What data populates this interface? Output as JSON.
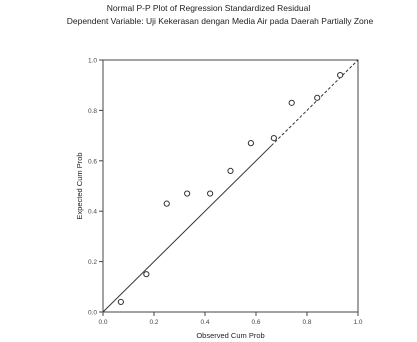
{
  "title": "Normal P-P Plot of Regression Standardized Residual",
  "subtitle": "Dependent Variable: Uji Kekerasan dengan Media Air pada Daerah Partially Zone",
  "chart_data": {
    "type": "scatter",
    "title": "Normal P-P Plot of Regression Standardized Residual",
    "subtitle": "Dependent Variable: Uji Kekerasan dengan Media Air pada Daerah Partially Zone",
    "xlabel": "Observed Cum Prob",
    "ylabel": "Expected Cum Prob",
    "xlim": [
      0,
      1
    ],
    "ylim": [
      0,
      1
    ],
    "xticks": [
      "0.0",
      "0.2",
      "0.4",
      "0.6",
      "0.8",
      "1.0"
    ],
    "yticks": [
      "0.0",
      "0.2",
      "0.4",
      "0.6",
      "0.8",
      "1.0"
    ],
    "reference_line": "diagonal",
    "grid": false,
    "points": [
      {
        "x": 0.07,
        "y": 0.04
      },
      {
        "x": 0.17,
        "y": 0.15
      },
      {
        "x": 0.25,
        "y": 0.43
      },
      {
        "x": 0.33,
        "y": 0.47
      },
      {
        "x": 0.42,
        "y": 0.47
      },
      {
        "x": 0.5,
        "y": 0.56
      },
      {
        "x": 0.58,
        "y": 0.67
      },
      {
        "x": 0.67,
        "y": 0.69
      },
      {
        "x": 0.74,
        "y": 0.83
      },
      {
        "x": 0.84,
        "y": 0.85
      },
      {
        "x": 0.93,
        "y": 0.94
      }
    ]
  }
}
